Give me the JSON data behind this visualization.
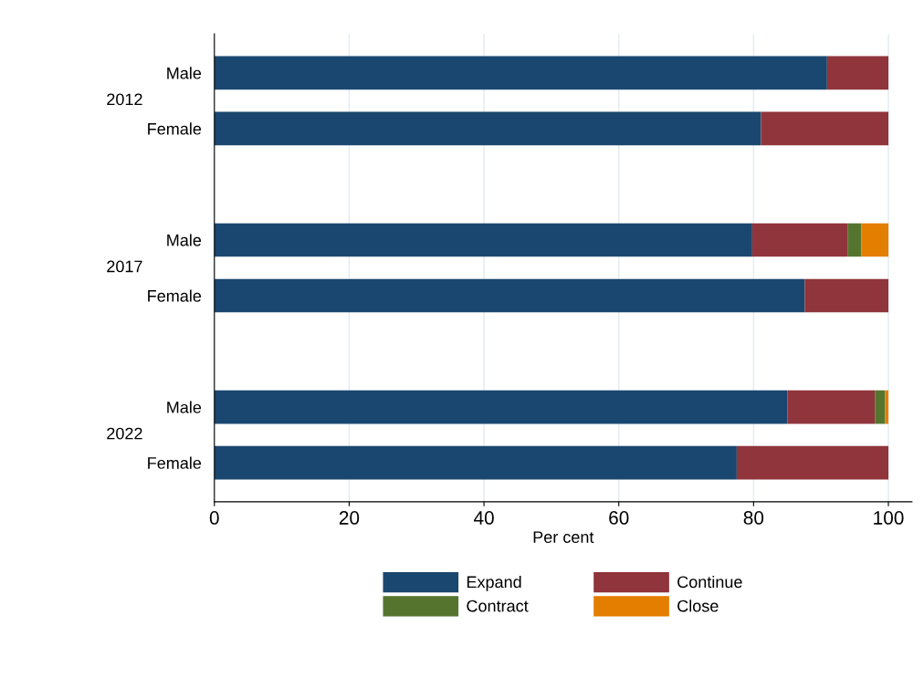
{
  "chart_data": {
    "type": "bar",
    "orientation": "horizontal",
    "stacked": true,
    "categories": [
      "Male",
      "Female",
      null,
      "Male",
      "Female",
      null,
      "Male",
      "Female"
    ],
    "series": [
      {
        "name": "Expand",
        "color": "#1a476f",
        "values": [
          90.9,
          81.1,
          null,
          79.8,
          87.6,
          null,
          85.0,
          77.5
        ]
      },
      {
        "name": "Continue",
        "color": "#90353b",
        "values": [
          9.1,
          18.9,
          null,
          14.2,
          12.4,
          null,
          13.0,
          22.5
        ]
      },
      {
        "name": "Contract",
        "color": "#55752f",
        "values": [
          0,
          0,
          null,
          2.0,
          0,
          null,
          1.5,
          0
        ]
      },
      {
        "name": "Close",
        "color": "#e37e00",
        "values": [
          0,
          0,
          null,
          4.0,
          0,
          null,
          0.5,
          0
        ]
      }
    ],
    "annotations": [
      "2012",
      "2017",
      "2022"
    ],
    "xlabel": "Per cent",
    "xlim": [
      0,
      103.5
    ],
    "xticks": [
      0,
      20,
      40,
      60,
      80,
      100
    ],
    "grid": "x",
    "legend": "bottom"
  }
}
